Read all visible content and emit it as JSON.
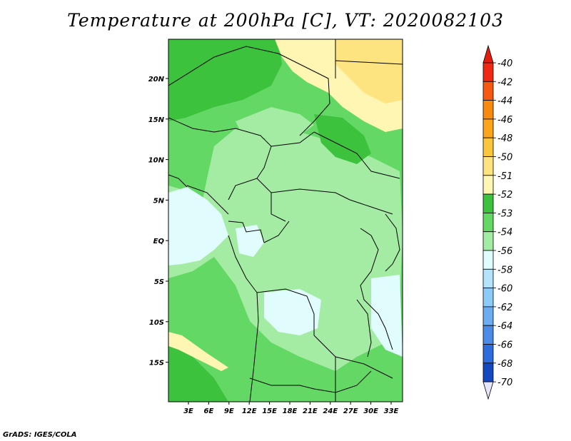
{
  "title": "Temperature at 200hPa [C], VT: 2020082103",
  "credit": "GrADS: IGES/COLA",
  "map": {
    "lat_labels": [
      "20N",
      "15N",
      "10N",
      "5N",
      "EQ",
      "5S",
      "10S",
      "15S"
    ],
    "lon_labels": [
      "3E",
      "6E",
      "9E",
      "12E",
      "15E",
      "18E",
      "21E",
      "24E",
      "27E",
      "30E",
      "33E"
    ]
  },
  "colorbar": {
    "levels": [
      "-40",
      "-42",
      "-44",
      "-46",
      "-48",
      "-50",
      "-51",
      "-52",
      "-53",
      "-54",
      "-56",
      "-58",
      "-60",
      "-62",
      "-64",
      "-66",
      "-68",
      "-70"
    ],
    "colors": [
      "#ee2a16",
      "#f55a10",
      "#f98a10",
      "#fba41c",
      "#fbc63c",
      "#fde480",
      "#fff6b4",
      "#3cc23c",
      "#64d864",
      "#a4eca4",
      "#e0fcfc",
      "#b4e4fc",
      "#8ccaf8",
      "#6cacf0",
      "#4c8ce8",
      "#2c6cdc",
      "#1448c0",
      "#08248c"
    ],
    "top_cap_color": "#e41c0c",
    "bottom_cap_color": "#e6e6f8"
  }
}
